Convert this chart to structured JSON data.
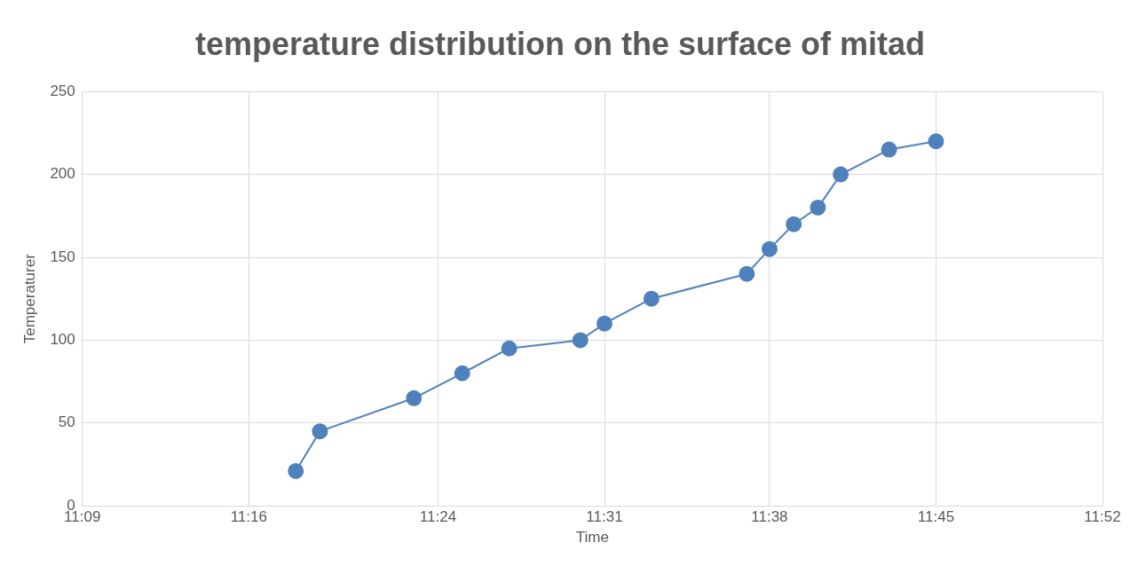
{
  "chart_data": {
    "type": "line",
    "title": "temperature distribution on the surface of mitad",
    "xlabel": "Time",
    "ylabel": "Temperaturer",
    "x": [
      11.3,
      11.317,
      11.383,
      11.417,
      11.45,
      11.5,
      11.517,
      11.55,
      11.617,
      11.633,
      11.65,
      11.667,
      11.683,
      11.717,
      11.75
    ],
    "series": [
      {
        "color": "#4f81bd",
        "values": [
          21,
          45,
          65,
          80,
          95,
          100,
          110,
          125,
          140,
          155,
          170,
          180,
          200,
          215,
          220
        ]
      }
    ],
    "xlim": [
      11.15,
      11.867
    ],
    "xticks": [
      {
        "value": 11.15,
        "label": "11:09"
      },
      {
        "value": 11.267,
        "label": "11:16"
      },
      {
        "value": 11.4,
        "label": "11:24"
      },
      {
        "value": 11.517,
        "label": "11:31"
      },
      {
        "value": 11.633,
        "label": "11:38"
      },
      {
        "value": 11.75,
        "label": "11:45"
      },
      {
        "value": 11.867,
        "label": "11:52"
      }
    ],
    "ylim": [
      0,
      250
    ],
    "yticks": [
      0,
      50,
      100,
      150,
      200,
      250
    ],
    "grid": true,
    "legend": false,
    "marker": "circle",
    "line_style": "solid"
  }
}
